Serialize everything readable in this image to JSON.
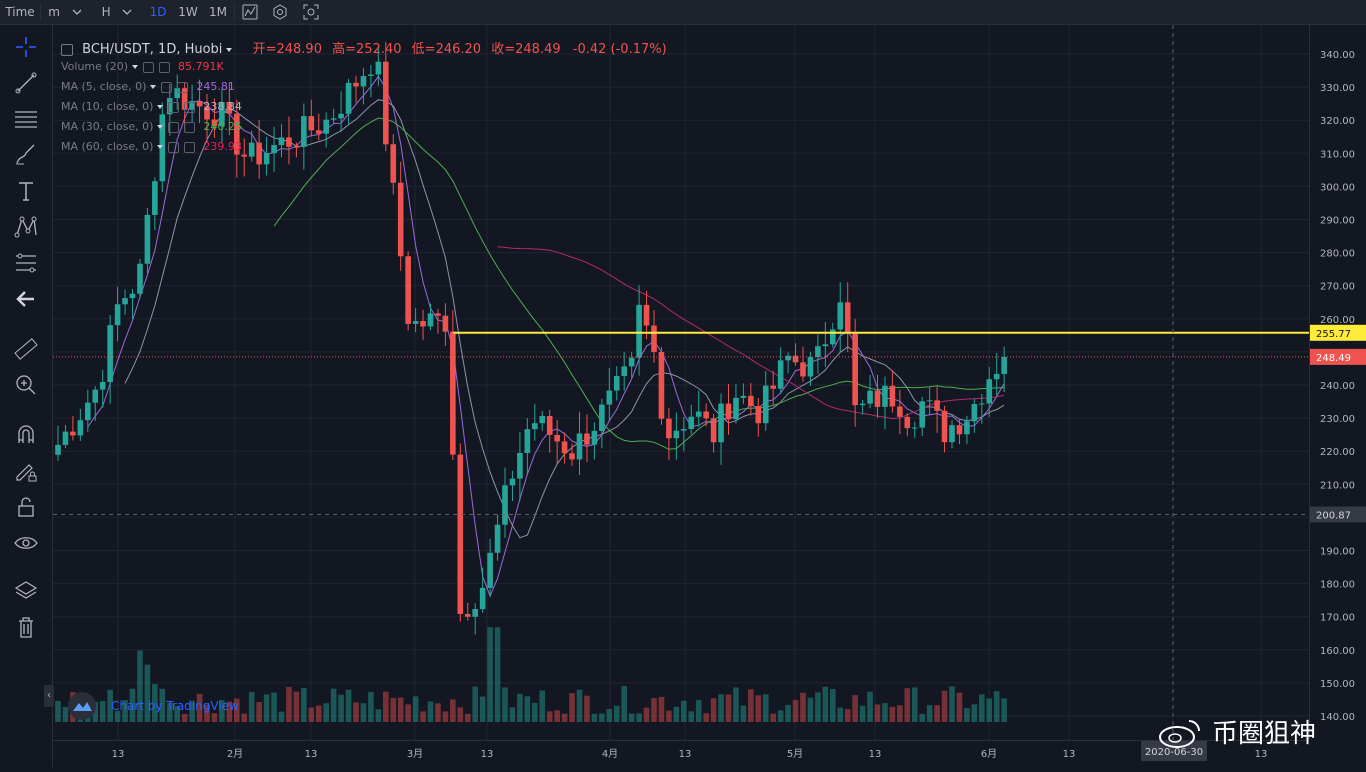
{
  "toolbar": {
    "time_label": "Time",
    "interval_minutes": "m",
    "interval_hours": "H",
    "intervals": [
      "1D",
      "1W",
      "1M"
    ],
    "active_interval": "1D"
  },
  "symbol": {
    "name": "BCH/USDT, 1D, Huobi",
    "open_label": "开=",
    "open": "248.90",
    "high_label": "高=",
    "high": "252.40",
    "low_label": "低=",
    "low": "246.20",
    "close_label": "收=",
    "close": "248.49",
    "change": "-0.42 (-0.17%)"
  },
  "indicators": [
    {
      "name": "Volume (20)",
      "value": "85.791K",
      "color": "#f23645"
    },
    {
      "name": "MA (5, close, 0)",
      "value": "245.81",
      "color": "#9c6ade"
    },
    {
      "name": "MA (10, close, 0)",
      "value": "238.84",
      "color": "#b2b5be"
    },
    {
      "name": "MA (30, close, 0)",
      "value": "240.25",
      "color": "#4caf50"
    },
    {
      "name": "MA (60, close, 0)",
      "value": "239.93",
      "color": "#e91e63"
    }
  ],
  "price_axis": {
    "labels": [
      "340.00",
      "330.00",
      "320.00",
      "310.00",
      "300.00",
      "290.00",
      "280.00",
      "270.00",
      "260.00",
      "250.00",
      "240.00",
      "230.00",
      "220.00",
      "210.00",
      "200.00",
      "190.00",
      "180.00",
      "170.00",
      "160.00",
      "150.00",
      "140.00"
    ],
    "horizontal_line_value": "255.77",
    "horizontal_line_color": "#ffeb3b",
    "last_price": "248.49",
    "last_price_color": "#ef5350",
    "crosshair_price": "200.87"
  },
  "time_axis": {
    "labels": [
      "13",
      "2月",
      "13",
      "3月",
      "13",
      "4月",
      "13",
      "5月",
      "13",
      "6月",
      "13",
      "13"
    ],
    "crosshair_date": "2020-06-30"
  },
  "watermark": {
    "text": "Chart by TradingView"
  },
  "overlay_text": "币圈狙神",
  "colors": {
    "up": "#26a69a",
    "down": "#ef5350",
    "background": "#131722",
    "grid": "#1f2431"
  }
}
